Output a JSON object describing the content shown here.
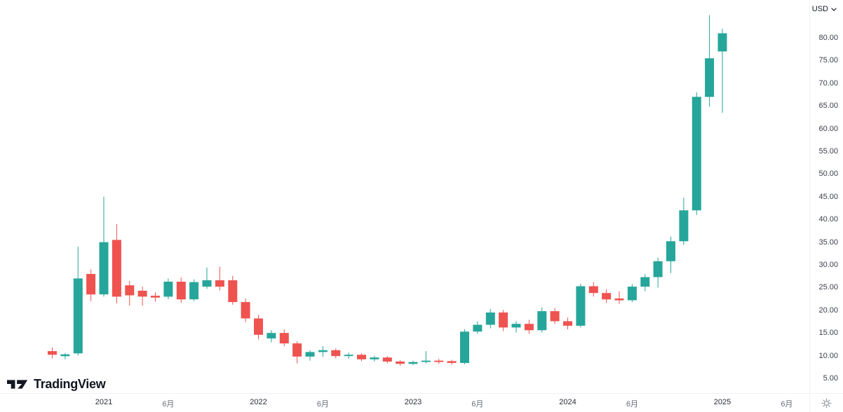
{
  "logo": {
    "text": "TradingView"
  },
  "price_scale": {
    "currency": "USD",
    "tick_labels": [
      "80.00",
      "75.00",
      "70.00",
      "65.00",
      "60.00",
      "55.00",
      "50.00",
      "45.00",
      "40.00",
      "35.00",
      "30.00",
      "25.00",
      "20.00",
      "15.00",
      "10.00",
      "5.00"
    ]
  },
  "time_scale": {
    "ticks": [
      {
        "label": "2021",
        "date": "2021-01",
        "major": true
      },
      {
        "label": "6月",
        "date": "2021-06",
        "major": false
      },
      {
        "label": "2022",
        "date": "2022-01",
        "major": true
      },
      {
        "label": "6月",
        "date": "2022-06",
        "major": false
      },
      {
        "label": "2023",
        "date": "2023-01",
        "major": true
      },
      {
        "label": "6月",
        "date": "2023-06",
        "major": false
      },
      {
        "label": "2024",
        "date": "2024-01",
        "major": true
      },
      {
        "label": "6月",
        "date": "2024-06",
        "major": false
      },
      {
        "label": "2025",
        "date": "2025-01",
        "major": true
      },
      {
        "label": "6月",
        "date": "2025-06",
        "major": false
      }
    ]
  },
  "colors": {
    "up": "#26a69a",
    "down": "#ef5350",
    "axis_text": "#3c404b",
    "background": "#ffffff"
  },
  "chart_data": {
    "type": "candlestick",
    "y_unit": "USD",
    "ylim": [
      2.5,
      88
    ],
    "up_color": "#26a69a",
    "down_color": "#ef5350",
    "candles": [
      {
        "date": "2020-09",
        "o": 11.0,
        "h": 11.8,
        "l": 9.4,
        "c": 10.2
      },
      {
        "date": "2020-10",
        "o": 9.9,
        "h": 10.6,
        "l": 9.2,
        "c": 10.3
      },
      {
        "date": "2020-11",
        "o": 10.5,
        "h": 34.0,
        "l": 10.0,
        "c": 27.0
      },
      {
        "date": "2020-12",
        "o": 28.0,
        "h": 29.0,
        "l": 22.0,
        "c": 23.5
      },
      {
        "date": "2021-01",
        "o": 23.5,
        "h": 45.0,
        "l": 23.0,
        "c": 35.0
      },
      {
        "date": "2021-02",
        "o": 35.5,
        "h": 39.0,
        "l": 21.5,
        "c": 23.0
      },
      {
        "date": "2021-03",
        "o": 25.5,
        "h": 26.5,
        "l": 21.0,
        "c": 23.3
      },
      {
        "date": "2021-04",
        "o": 24.3,
        "h": 25.2,
        "l": 21.0,
        "c": 23.0
      },
      {
        "date": "2021-05",
        "o": 23.2,
        "h": 23.9,
        "l": 21.9,
        "c": 22.8
      },
      {
        "date": "2021-06",
        "o": 23.0,
        "h": 27.0,
        "l": 22.4,
        "c": 26.3
      },
      {
        "date": "2021-07",
        "o": 26.3,
        "h": 27.2,
        "l": 21.6,
        "c": 22.4
      },
      {
        "date": "2021-08",
        "o": 22.4,
        "h": 26.8,
        "l": 22.0,
        "c": 26.2
      },
      {
        "date": "2021-09",
        "o": 25.2,
        "h": 29.4,
        "l": 24.7,
        "c": 26.6
      },
      {
        "date": "2021-10",
        "o": 26.6,
        "h": 29.6,
        "l": 24.4,
        "c": 25.2
      },
      {
        "date": "2021-11",
        "o": 26.6,
        "h": 27.6,
        "l": 21.2,
        "c": 21.8
      },
      {
        "date": "2021-12",
        "o": 21.8,
        "h": 22.6,
        "l": 17.4,
        "c": 18.2
      },
      {
        "date": "2022-01",
        "o": 18.2,
        "h": 19.0,
        "l": 13.6,
        "c": 14.6
      },
      {
        "date": "2022-02",
        "o": 13.8,
        "h": 15.6,
        "l": 12.9,
        "c": 15.0
      },
      {
        "date": "2022-03",
        "o": 15.0,
        "h": 15.8,
        "l": 12.1,
        "c": 12.7
      },
      {
        "date": "2022-04",
        "o": 12.7,
        "h": 13.2,
        "l": 8.3,
        "c": 9.8
      },
      {
        "date": "2022-05",
        "o": 9.8,
        "h": 11.2,
        "l": 8.9,
        "c": 10.8
      },
      {
        "date": "2022-06",
        "o": 10.8,
        "h": 12.1,
        "l": 9.7,
        "c": 11.2
      },
      {
        "date": "2022-07",
        "o": 11.2,
        "h": 11.6,
        "l": 9.4,
        "c": 9.9
      },
      {
        "date": "2022-08",
        "o": 9.9,
        "h": 10.7,
        "l": 9.3,
        "c": 10.2
      },
      {
        "date": "2022-09",
        "o": 10.2,
        "h": 10.5,
        "l": 8.8,
        "c": 9.2
      },
      {
        "date": "2022-10",
        "o": 9.2,
        "h": 10.0,
        "l": 8.7,
        "c": 9.6
      },
      {
        "date": "2022-11",
        "o": 9.6,
        "h": 9.9,
        "l": 8.3,
        "c": 8.7
      },
      {
        "date": "2022-12",
        "o": 8.7,
        "h": 9.0,
        "l": 7.8,
        "c": 8.2
      },
      {
        "date": "2023-01",
        "o": 8.2,
        "h": 8.9,
        "l": 7.9,
        "c": 8.6
      },
      {
        "date": "2023-02",
        "o": 8.6,
        "h": 11.0,
        "l": 8.3,
        "c": 8.9
      },
      {
        "date": "2023-03",
        "o": 8.9,
        "h": 9.3,
        "l": 8.2,
        "c": 8.6
      },
      {
        "date": "2023-04",
        "o": 8.8,
        "h": 9.1,
        "l": 8.0,
        "c": 8.4
      },
      {
        "date": "2023-05",
        "o": 8.4,
        "h": 15.8,
        "l": 8.1,
        "c": 15.3
      },
      {
        "date": "2023-06",
        "o": 15.3,
        "h": 17.6,
        "l": 14.8,
        "c": 16.8
      },
      {
        "date": "2023-07",
        "o": 16.8,
        "h": 20.3,
        "l": 16.0,
        "c": 19.5
      },
      {
        "date": "2023-08",
        "o": 19.5,
        "h": 20.1,
        "l": 15.4,
        "c": 16.2
      },
      {
        "date": "2023-09",
        "o": 16.2,
        "h": 17.6,
        "l": 15.1,
        "c": 17.0
      },
      {
        "date": "2023-10",
        "o": 17.0,
        "h": 17.9,
        "l": 14.8,
        "c": 15.6
      },
      {
        "date": "2023-11",
        "o": 15.6,
        "h": 20.6,
        "l": 15.1,
        "c": 19.8
      },
      {
        "date": "2023-12",
        "o": 19.8,
        "h": 20.5,
        "l": 17.0,
        "c": 17.6
      },
      {
        "date": "2024-01",
        "o": 17.6,
        "h": 18.4,
        "l": 15.8,
        "c": 16.6
      },
      {
        "date": "2024-02",
        "o": 16.6,
        "h": 25.8,
        "l": 16.2,
        "c": 25.3
      },
      {
        "date": "2024-03",
        "o": 25.3,
        "h": 26.2,
        "l": 23.0,
        "c": 23.8
      },
      {
        "date": "2024-04",
        "o": 23.8,
        "h": 24.6,
        "l": 21.6,
        "c": 22.4
      },
      {
        "date": "2024-05",
        "o": 22.6,
        "h": 24.2,
        "l": 21.4,
        "c": 22.2
      },
      {
        "date": "2024-06",
        "o": 22.2,
        "h": 25.8,
        "l": 21.8,
        "c": 25.2
      },
      {
        "date": "2024-07",
        "o": 25.2,
        "h": 28.0,
        "l": 24.2,
        "c": 27.3
      },
      {
        "date": "2024-08",
        "o": 27.3,
        "h": 31.6,
        "l": 25.0,
        "c": 30.8
      },
      {
        "date": "2024-09",
        "o": 30.8,
        "h": 36.2,
        "l": 28.2,
        "c": 35.2
      },
      {
        "date": "2024-10",
        "o": 35.2,
        "h": 44.8,
        "l": 34.4,
        "c": 42.0
      },
      {
        "date": "2024-11",
        "o": 42.0,
        "h": 68.0,
        "l": 41.0,
        "c": 67.0
      },
      {
        "date": "2024-12",
        "o": 67.0,
        "h": 85.0,
        "l": 64.8,
        "c": 75.5
      },
      {
        "date": "2025-01",
        "o": 77.0,
        "h": 82.0,
        "l": 63.5,
        "c": 81.0
      }
    ]
  }
}
